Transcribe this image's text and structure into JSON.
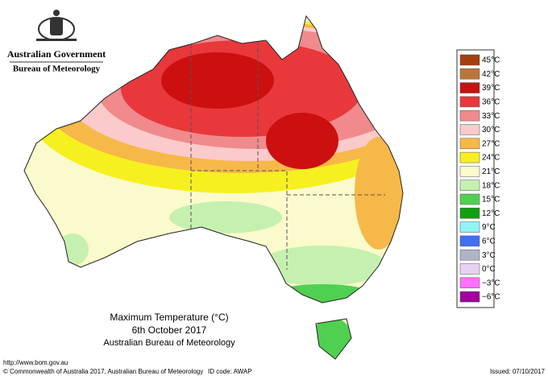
{
  "header": {
    "government": "Australian Government",
    "bureau": "Bureau of Meteorology"
  },
  "title": {
    "line1": "Maximum Temperature (°C)",
    "line2": "6th October 2017",
    "line3": "Australian Bureau of Meteorology"
  },
  "legend": {
    "items": [
      {
        "label": "45°C",
        "color": "#a3400d"
      },
      {
        "label": "42°C",
        "color": "#b8773a"
      },
      {
        "label": "39°C",
        "color": "#cc1010"
      },
      {
        "label": "36°C",
        "color": "#e8383c"
      },
      {
        "label": "33°C",
        "color": "#f08a8c"
      },
      {
        "label": "30°C",
        "color": "#fbcaca"
      },
      {
        "label": "27°C",
        "color": "#f6b848"
      },
      {
        "label": "24°C",
        "color": "#f6f020"
      },
      {
        "label": "21°C",
        "color": "#fafacc"
      },
      {
        "label": "18°C",
        "color": "#c6f0b0"
      },
      {
        "label": "15°C",
        "color": "#50d050"
      },
      {
        "label": "12°C",
        "color": "#10a010"
      },
      {
        "label": "9°C",
        "color": "#90f4f4"
      },
      {
        "label": "6°C",
        "color": "#4070f0"
      },
      {
        "label": "3°C",
        "color": "#b0b4c8"
      },
      {
        "label": "0°C",
        "color": "#e6d2f2"
      },
      {
        "label": "−3°C",
        "color": "#ff70ff"
      },
      {
        "label": "−6°C",
        "color": "#a000a0"
      }
    ]
  },
  "footer": {
    "url": "http://www.bom.gov.au",
    "copyright": "© Commonwealth of Australia 2017, Australian Bureau of Meteorology",
    "id_code": "ID code: AWAP",
    "issued": "Issued: 07/10/2017"
  }
}
